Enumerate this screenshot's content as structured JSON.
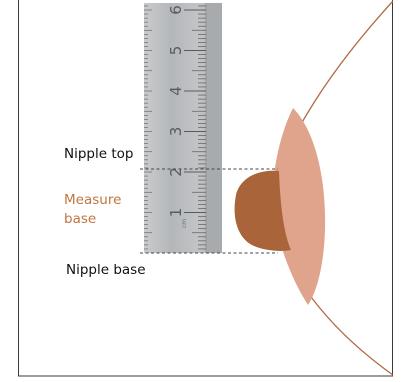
{
  "labels": {
    "nipple_top": "Nipple top",
    "measure_base_line1": "Measure",
    "measure_base_line2": "base",
    "nipple_base": "Nipple base"
  },
  "ruler": {
    "numbers": [
      "1",
      "2",
      "3",
      "4",
      "5",
      "6"
    ],
    "brand_marking": "cm"
  },
  "icons": {
    "ruler": "ruler-icon",
    "breast": "breast-illustration",
    "areola": "areola-shape",
    "nipple": "nipple-shape"
  },
  "colors": {
    "frame_border": "#3a3a3a",
    "breast_outline": "#b26b45",
    "areola_fill": "#e0a48c",
    "nipple_fill": "#a9643a",
    "measure_label": "#c0763f",
    "ruler_body": "#b9bcbf",
    "ruler_marks": "#585c60",
    "guide_line": "#444444"
  }
}
